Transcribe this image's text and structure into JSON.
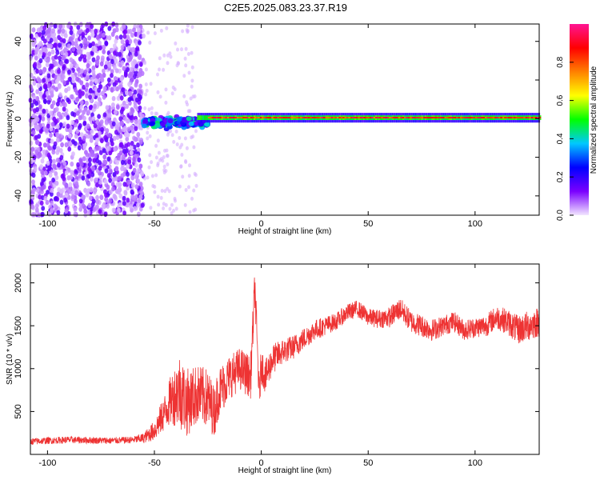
{
  "title": "C2E5.2025.083.23.37.R19",
  "chart_data": [
    {
      "type": "heatmap",
      "xlabel": "Height of straight line (km)",
      "ylabel": "Frequency (Hz)",
      "xlim": [
        -108,
        130
      ],
      "ylim": [
        -50,
        49
      ],
      "x_ticks": [
        -100,
        -50,
        0,
        50,
        100
      ],
      "x_tick_labels": [
        "-100",
        "-50",
        "0",
        "50",
        "100"
      ],
      "y_ticks": [
        -40,
        -20,
        0,
        20,
        40
      ],
      "y_tick_labels": [
        "-40",
        "-20",
        "0",
        "20",
        "40"
      ],
      "colorbar": {
        "label": "Normalized spectral amplitude",
        "range": [
          0,
          1
        ],
        "ticks": [
          0.0,
          0.2,
          0.4,
          0.6,
          0.8
        ],
        "tick_labels": [
          "0.0",
          "0.2",
          "0.4",
          "0.6",
          "0.8"
        ],
        "colors": [
          "#f2e6ff",
          "#7a00ff",
          "#0000ff",
          "#00c8ff",
          "#00ff00",
          "#ffff00",
          "#ff8000",
          "#ff0000",
          "#ff1493"
        ]
      },
      "regions": [
        {
          "x_range": [
            -108,
            -55
          ],
          "freq_range": [
            -50,
            49
          ],
          "amplitude": 0.1
        },
        {
          "x_range": [
            -55,
            -25
          ],
          "freq_center": -2,
          "amplitude": 0.3
        },
        {
          "x_range": [
            -25,
            130
          ],
          "freq_center": 0.5,
          "amplitude": 0.9
        }
      ]
    },
    {
      "type": "line",
      "xlabel": "Height of straight line (km)",
      "ylabel": "SNR (10 * v/v)",
      "xlim": [
        -108,
        130
      ],
      "ylim": [
        0,
        2220
      ],
      "x_ticks": [
        -100,
        -50,
        0,
        50,
        100
      ],
      "x_tick_labels": [
        "-100",
        "-50",
        "0",
        "50",
        "100"
      ],
      "y_ticks": [
        500,
        1000,
        1500,
        2000
      ],
      "y_tick_labels": [
        "500",
        "1000",
        "1500",
        "2000"
      ],
      "color": "#ee3333",
      "series": [
        {
          "x": [
            -108,
            -100,
            -90,
            -80,
            -70,
            -60,
            -55,
            -50,
            -45,
            -42,
            -38,
            -35,
            -30,
            -25,
            -22,
            -20,
            -15,
            -10,
            -5,
            -3,
            -1,
            0,
            2,
            5,
            10,
            15,
            20,
            25,
            30,
            35,
            40,
            45,
            50,
            55,
            60,
            65,
            70,
            75,
            80,
            85,
            90,
            95,
            100,
            105,
            110,
            115,
            120,
            125,
            130
          ],
          "y": [
            150,
            160,
            170,
            165,
            160,
            170,
            190,
            280,
            500,
            650,
            750,
            600,
            700,
            650,
            500,
            720,
            900,
            1000,
            900,
            1950,
            700,
            1050,
            900,
            1100,
            1200,
            1250,
            1350,
            1450,
            1500,
            1550,
            1650,
            1700,
            1600,
            1580,
            1600,
            1700,
            1550,
            1500,
            1450,
            1500,
            1550,
            1450,
            1480,
            1500,
            1600,
            1550,
            1450,
            1500,
            1550
          ],
          "noise_amplitude": [
            40,
            40,
            40,
            40,
            40,
            40,
            60,
            120,
            220,
            300,
            450,
            400,
            350,
            350,
            300,
            300,
            260,
            250,
            250,
            250,
            220,
            220,
            200,
            180,
            150,
            140,
            130,
            120,
            110,
            100,
            100,
            100,
            100,
            110,
            120,
            130,
            130,
            130,
            130,
            120,
            120,
            120,
            120,
            130,
            140,
            150,
            170,
            180,
            180
          ]
        }
      ]
    }
  ]
}
